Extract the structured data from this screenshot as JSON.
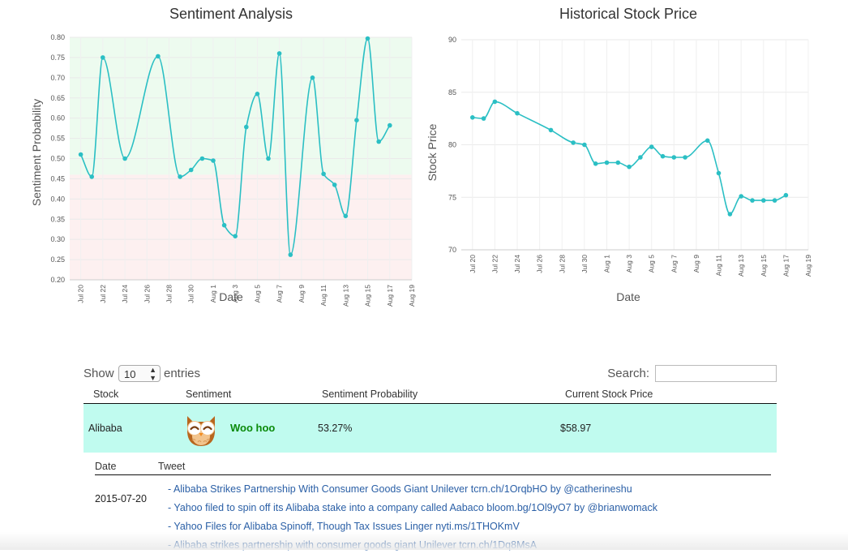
{
  "chart_data": [
    {
      "type": "line",
      "title": "Sentiment Analysis",
      "xlabel": "Date",
      "ylabel": "Sentiment Probability",
      "xlim": [
        "2015-07-19",
        "2015-08-19"
      ],
      "ylim": [
        0.2,
        0.8
      ],
      "x_ticks": [
        "Jul 20",
        "Jul 22",
        "Jul 24",
        "Jul 26",
        "Jul 28",
        "Jul 30",
        "Aug 1",
        "Aug 3",
        "Aug 5",
        "Aug 7",
        "Aug 9",
        "Aug 11",
        "Aug 13",
        "Aug 15",
        "Aug 17",
        "Aug 19"
      ],
      "y_ticks": [
        "0.20",
        "0.25",
        "0.30",
        "0.35",
        "0.40",
        "0.45",
        "0.50",
        "0.55",
        "0.60",
        "0.65",
        "0.70",
        "0.75",
        "0.80"
      ],
      "bands": [
        {
          "from": 0.46,
          "to": 0.8,
          "color": "#edfbef"
        },
        {
          "from": 0.2,
          "to": 0.46,
          "color": "#fdf0f0"
        }
      ],
      "line_color": "#2bbfc4",
      "series": [
        {
          "x": [
            "2015-07-20",
            "2015-07-21",
            "2015-07-22",
            "2015-07-24",
            "2015-07-27",
            "2015-07-29",
            "2015-07-30",
            "2015-07-31",
            "2015-08-01",
            "2015-08-02",
            "2015-08-03",
            "2015-08-04",
            "2015-08-05",
            "2015-08-06",
            "2015-08-07",
            "2015-08-08",
            "2015-08-10",
            "2015-08-11",
            "2015-08-12",
            "2015-08-13",
            "2015-08-14",
            "2015-08-15",
            "2015-08-16",
            "2015-08-17"
          ],
          "y": [
            0.51,
            0.455,
            0.75,
            0.5,
            0.753,
            0.455,
            0.472,
            0.5,
            0.495,
            0.335,
            0.308,
            0.578,
            0.66,
            0.5,
            0.76,
            0.262,
            0.7,
            0.462,
            0.435,
            0.358,
            0.595,
            0.797,
            0.542,
            0.582
          ]
        }
      ]
    },
    {
      "type": "line",
      "title": "Historical Stock Price",
      "xlabel": "Date",
      "ylabel": "Stock Price",
      "xlim": [
        "2015-07-19",
        "2015-08-19"
      ],
      "ylim": [
        70,
        90
      ],
      "x_ticks": [
        "Jul 20",
        "Jul 22",
        "Jul 24",
        "Jul 26",
        "Jul 28",
        "Jul 30",
        "Aug 1",
        "Aug 3",
        "Aug 5",
        "Aug 7",
        "Aug 9",
        "Aug 11",
        "Aug 13",
        "Aug 15",
        "Aug 17",
        "Aug 19"
      ],
      "y_ticks": [
        "70",
        "75",
        "80",
        "85",
        "90"
      ],
      "line_color": "#2bbfc4",
      "series": [
        {
          "x": [
            "2015-07-20",
            "2015-07-21",
            "2015-07-22",
            "2015-07-24",
            "2015-07-27",
            "2015-07-29",
            "2015-07-30",
            "2015-07-31",
            "2015-08-01",
            "2015-08-02",
            "2015-08-03",
            "2015-08-04",
            "2015-08-05",
            "2015-08-06",
            "2015-08-07",
            "2015-08-08",
            "2015-08-10",
            "2015-08-11",
            "2015-08-12",
            "2015-08-13",
            "2015-08-14",
            "2015-08-15",
            "2015-08-16",
            "2015-08-17"
          ],
          "y": [
            82.6,
            82.5,
            84.1,
            83.0,
            81.4,
            80.2,
            80.0,
            78.2,
            78.3,
            78.3,
            77.9,
            78.8,
            79.8,
            78.9,
            78.8,
            78.8,
            80.4,
            77.3,
            73.4,
            75.1,
            74.7,
            74.7,
            74.7,
            75.2
          ]
        }
      ]
    }
  ],
  "table_controls": {
    "show_label": "Show",
    "entries_value": "10",
    "entries_label": "entries",
    "search_label": "Search:"
  },
  "table": {
    "columns": [
      "Stock",
      "Sentiment",
      "Sentiment Probability",
      "Current Stock Price"
    ],
    "row": {
      "stock": "Alibaba",
      "sentiment": "Woo hoo",
      "probability": "53.27%",
      "price": "$58.97"
    }
  },
  "tweets_table": {
    "columns": [
      "Date",
      "Tweet"
    ],
    "date": "2015-07-20",
    "tweets": [
      "- Alibaba Strikes Partnership With Consumer Goods Giant Unilever tcrn.ch/1OrqbHO by @catherineshu",
      "- Yahoo filed to spin off its Alibaba stake into a company called Aabaco bloom.bg/1Ol9yO7 by @brianwomack",
      "- Yahoo Files for Alibaba Spinoff, Though Tax Issues Linger nyti.ms/1THOKmV",
      "- Alibaba strikes partnership with consumer goods giant Unilever tcrn.ch/1Dq8MsA"
    ]
  },
  "colors": {
    "row_highlight": "#c0fbef",
    "link": "#2a5fa6",
    "positive": "#0a8a0a"
  }
}
